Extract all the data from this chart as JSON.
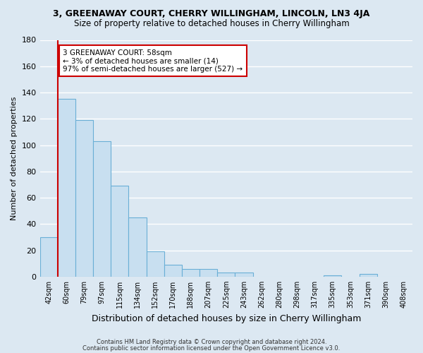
{
  "title": "3, GREENAWAY COURT, CHERRY WILLINGHAM, LINCOLN, LN3 4JA",
  "subtitle": "Size of property relative to detached houses in Cherry Willingham",
  "xlabel": "Distribution of detached houses by size in Cherry Willingham",
  "ylabel": "Number of detached properties",
  "footnote1": "Contains HM Land Registry data © Crown copyright and database right 2024.",
  "footnote2": "Contains public sector information licensed under the Open Government Licence v3.0.",
  "bin_labels": [
    "42sqm",
    "60sqm",
    "79sqm",
    "97sqm",
    "115sqm",
    "134sqm",
    "152sqm",
    "170sqm",
    "188sqm",
    "207sqm",
    "225sqm",
    "243sqm",
    "262sqm",
    "280sqm",
    "298sqm",
    "317sqm",
    "335sqm",
    "353sqm",
    "371sqm",
    "390sqm",
    "408sqm"
  ],
  "bar_heights": [
    30,
    135,
    119,
    103,
    69,
    45,
    19,
    9,
    6,
    6,
    3,
    3,
    0,
    0,
    0,
    0,
    1,
    0,
    2,
    0,
    0
  ],
  "bar_color": "#c8dff0",
  "bar_edge_color": "#6aafd6",
  "highlight_line_color": "#cc0000",
  "annotation_title": "3 GREENAWAY COURT: 58sqm",
  "annotation_line1": "← 3% of detached houses are smaller (14)",
  "annotation_line2": "97% of semi-detached houses are larger (527) →",
  "annotation_box_color": "#ffffff",
  "annotation_box_edge_color": "#cc0000",
  "ylim": [
    0,
    180
  ],
  "yticks": [
    0,
    20,
    40,
    60,
    80,
    100,
    120,
    140,
    160,
    180
  ],
  "background_color": "#dce8f2",
  "plot_bg_color": "#dce8f2",
  "grid_color": "#ffffff",
  "title_fontsize": 9,
  "subtitle_fontsize": 8.5,
  "xlabel_fontsize": 9,
  "ylabel_fontsize": 8
}
